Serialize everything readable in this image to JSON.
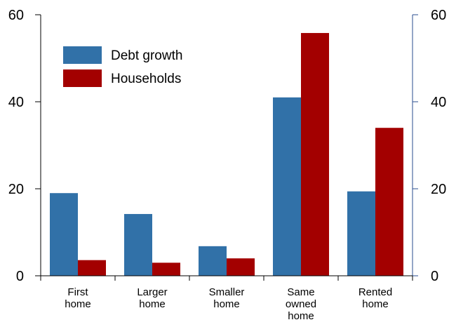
{
  "chart_data": {
    "type": "bar",
    "categories": [
      [
        "First",
        "home"
      ],
      [
        "Larger",
        "home"
      ],
      [
        "Smaller",
        "home"
      ],
      [
        "Same",
        "owned",
        "home"
      ],
      [
        "Rented",
        "home"
      ]
    ],
    "series": [
      {
        "name": "Debt growth",
        "color": "#3171a8",
        "values": [
          19,
          14.2,
          6.8,
          41,
          19.4
        ]
      },
      {
        "name": "Households",
        "color": "#a30000",
        "values": [
          3.6,
          3.0,
          4.0,
          55.8,
          34
        ]
      }
    ],
    "ylim": [
      0,
      60
    ],
    "yticks": [
      "0",
      "20",
      "40",
      "60"
    ],
    "yticks_right": [
      "0",
      "20",
      "40",
      "60"
    ],
    "grid": false,
    "legend_position": "top-left",
    "colors": {
      "axis_left": "#000000",
      "axis_right": "#2a4d8f"
    }
  }
}
